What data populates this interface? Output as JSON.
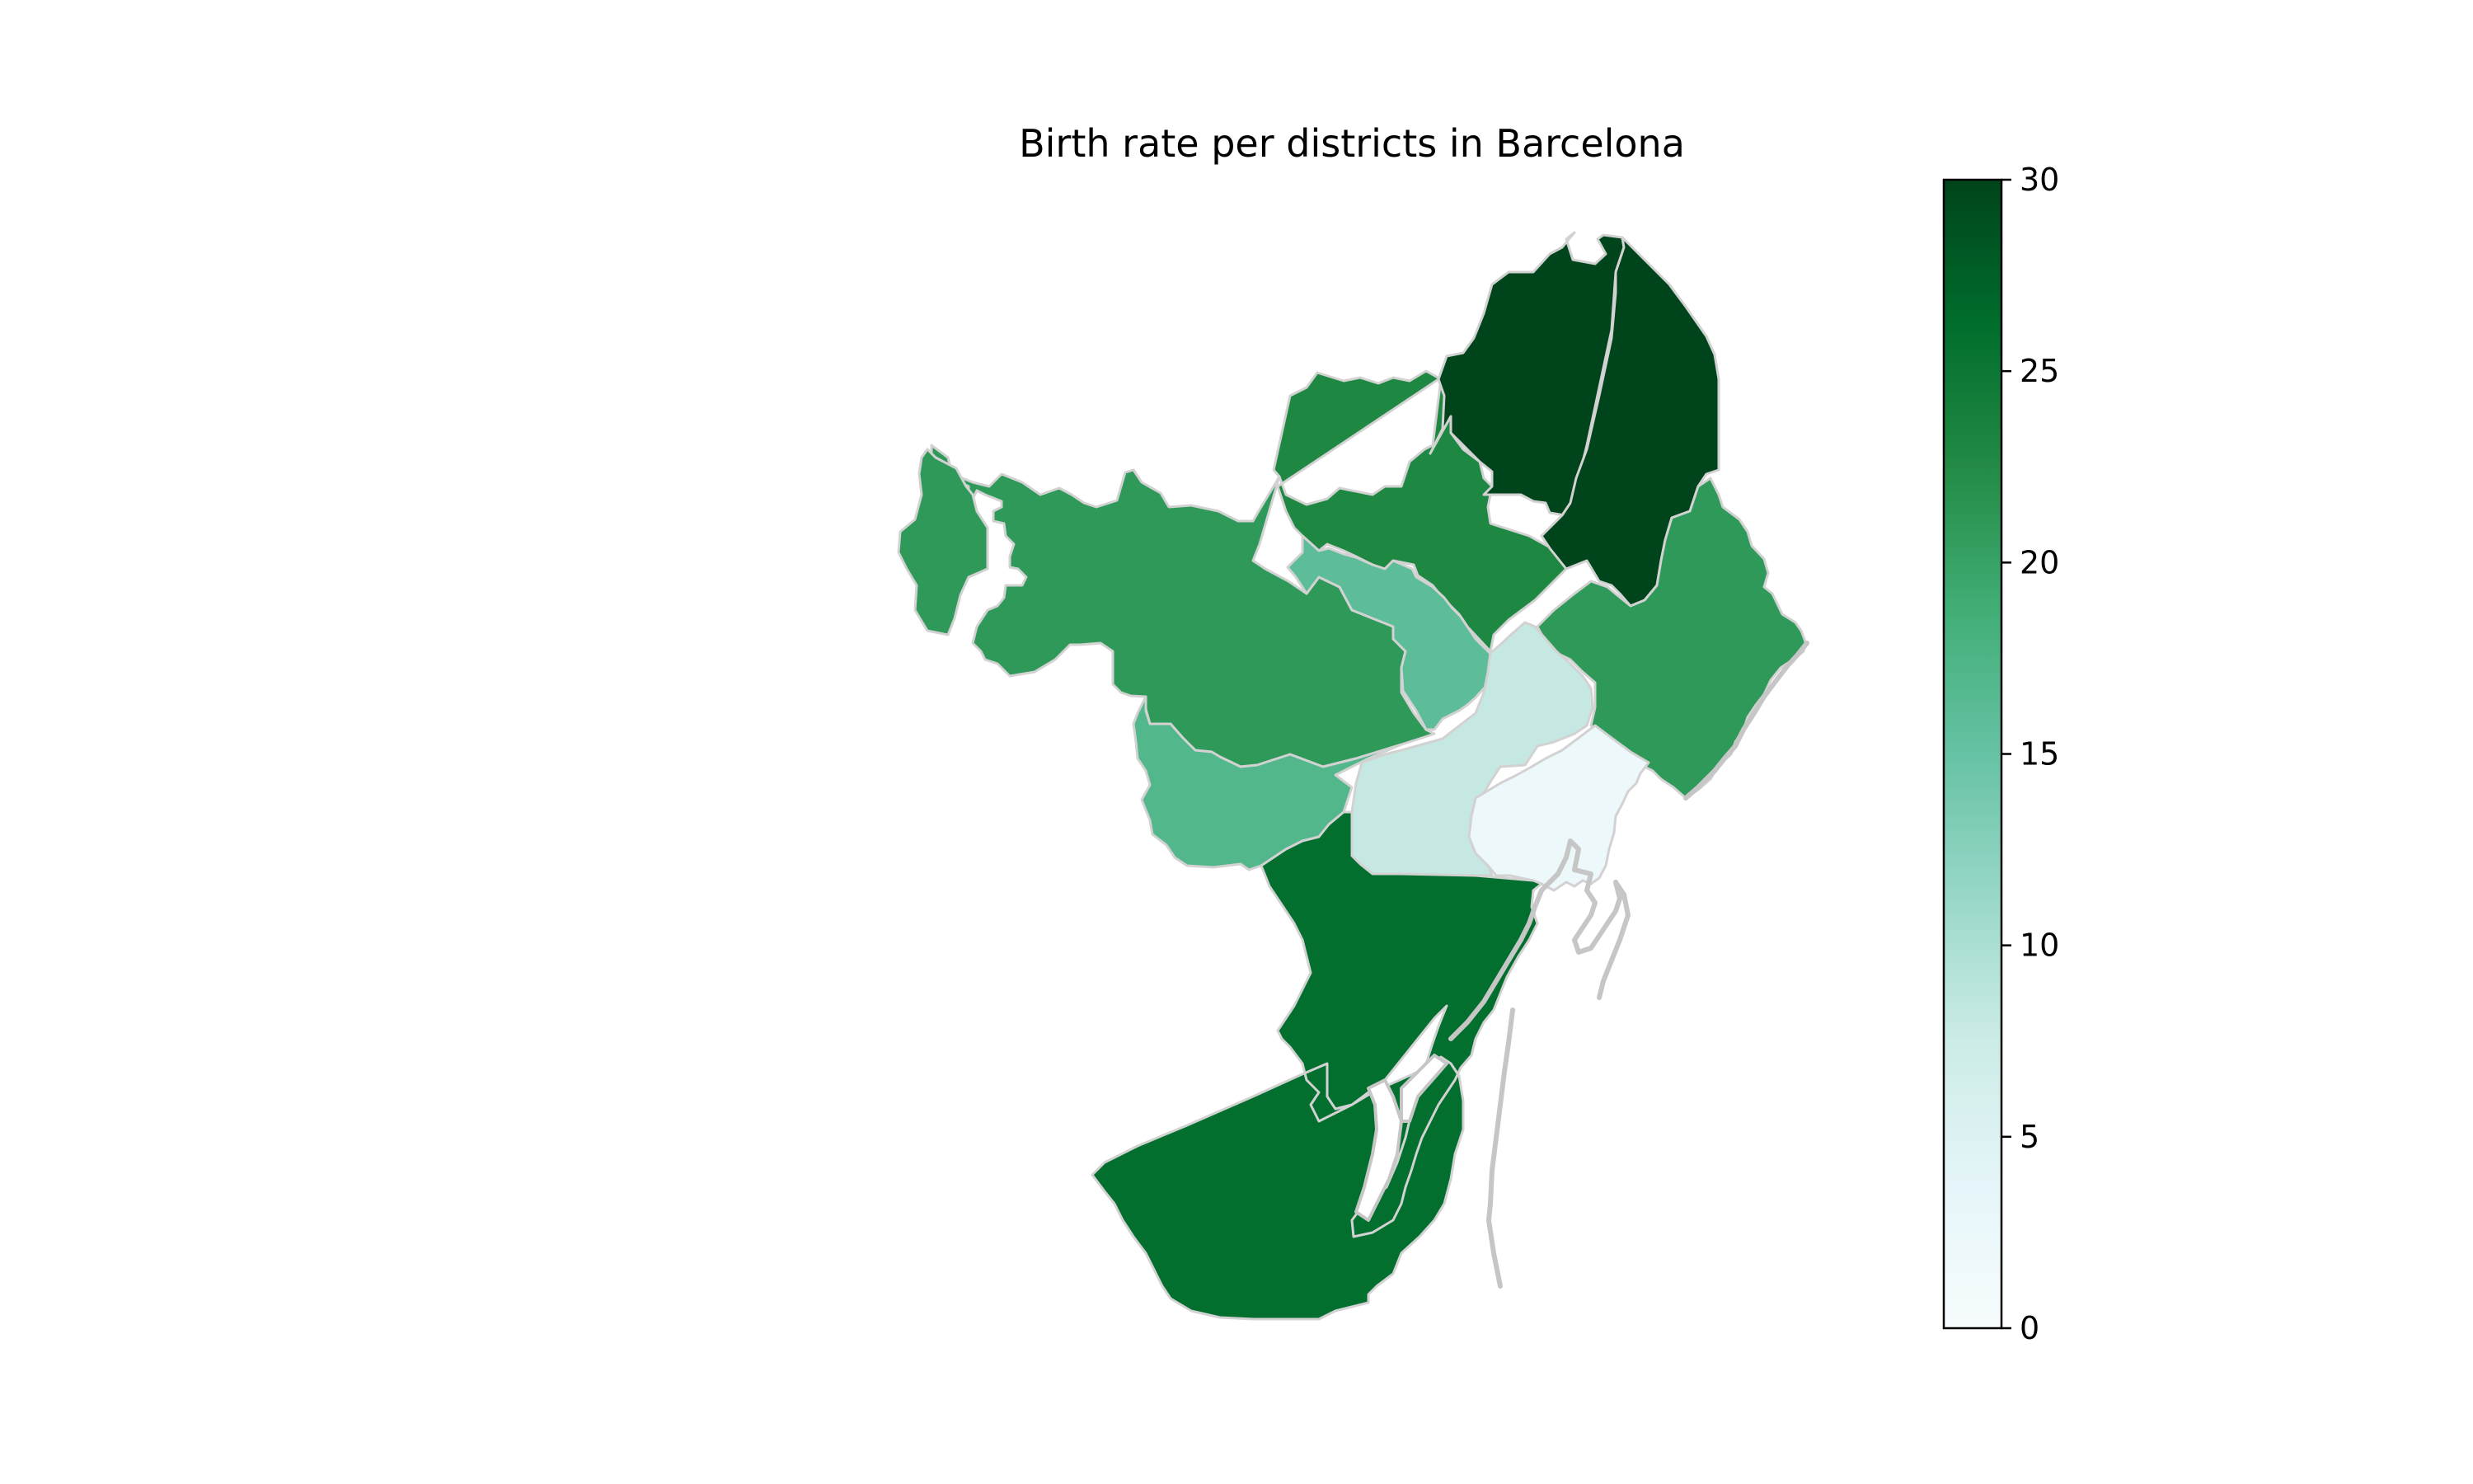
{
  "chart_data": {
    "type": "choropleth",
    "title": "Birth rate per districts in Barcelona",
    "colorbar": {
      "min": 0,
      "max": 30,
      "ticks": [
        "0",
        "5",
        "10",
        "15",
        "20",
        "25",
        "30"
      ],
      "colormap": "BuGn",
      "position": "right"
    },
    "regions": [
      {
        "id": "nou-barris",
        "value": 30
      },
      {
        "id": "sant-andreu",
        "value": 30
      },
      {
        "id": "horta-guinardo",
        "value": 23
      },
      {
        "id": "sarria-sant-gervasi",
        "value": 21
      },
      {
        "id": "sant-marti",
        "value": 21
      },
      {
        "id": "les-corts",
        "value": 17
      },
      {
        "id": "gracia",
        "value": 16
      },
      {
        "id": "eixample",
        "value": 8
      },
      {
        "id": "ciutat-vella",
        "value": 2
      },
      {
        "id": "sants-montjuic",
        "value": 26
      }
    ],
    "colors": {
      "stops": [
        "#f7fcfd",
        "#e5f5f9",
        "#ccece6",
        "#99d8c9",
        "#66c2a4",
        "#41ae76",
        "#238b45",
        "#006d2c",
        "#00441b"
      ],
      "district_edge": "#d2d2d2",
      "coast_line": "#c6c6c6"
    }
  }
}
